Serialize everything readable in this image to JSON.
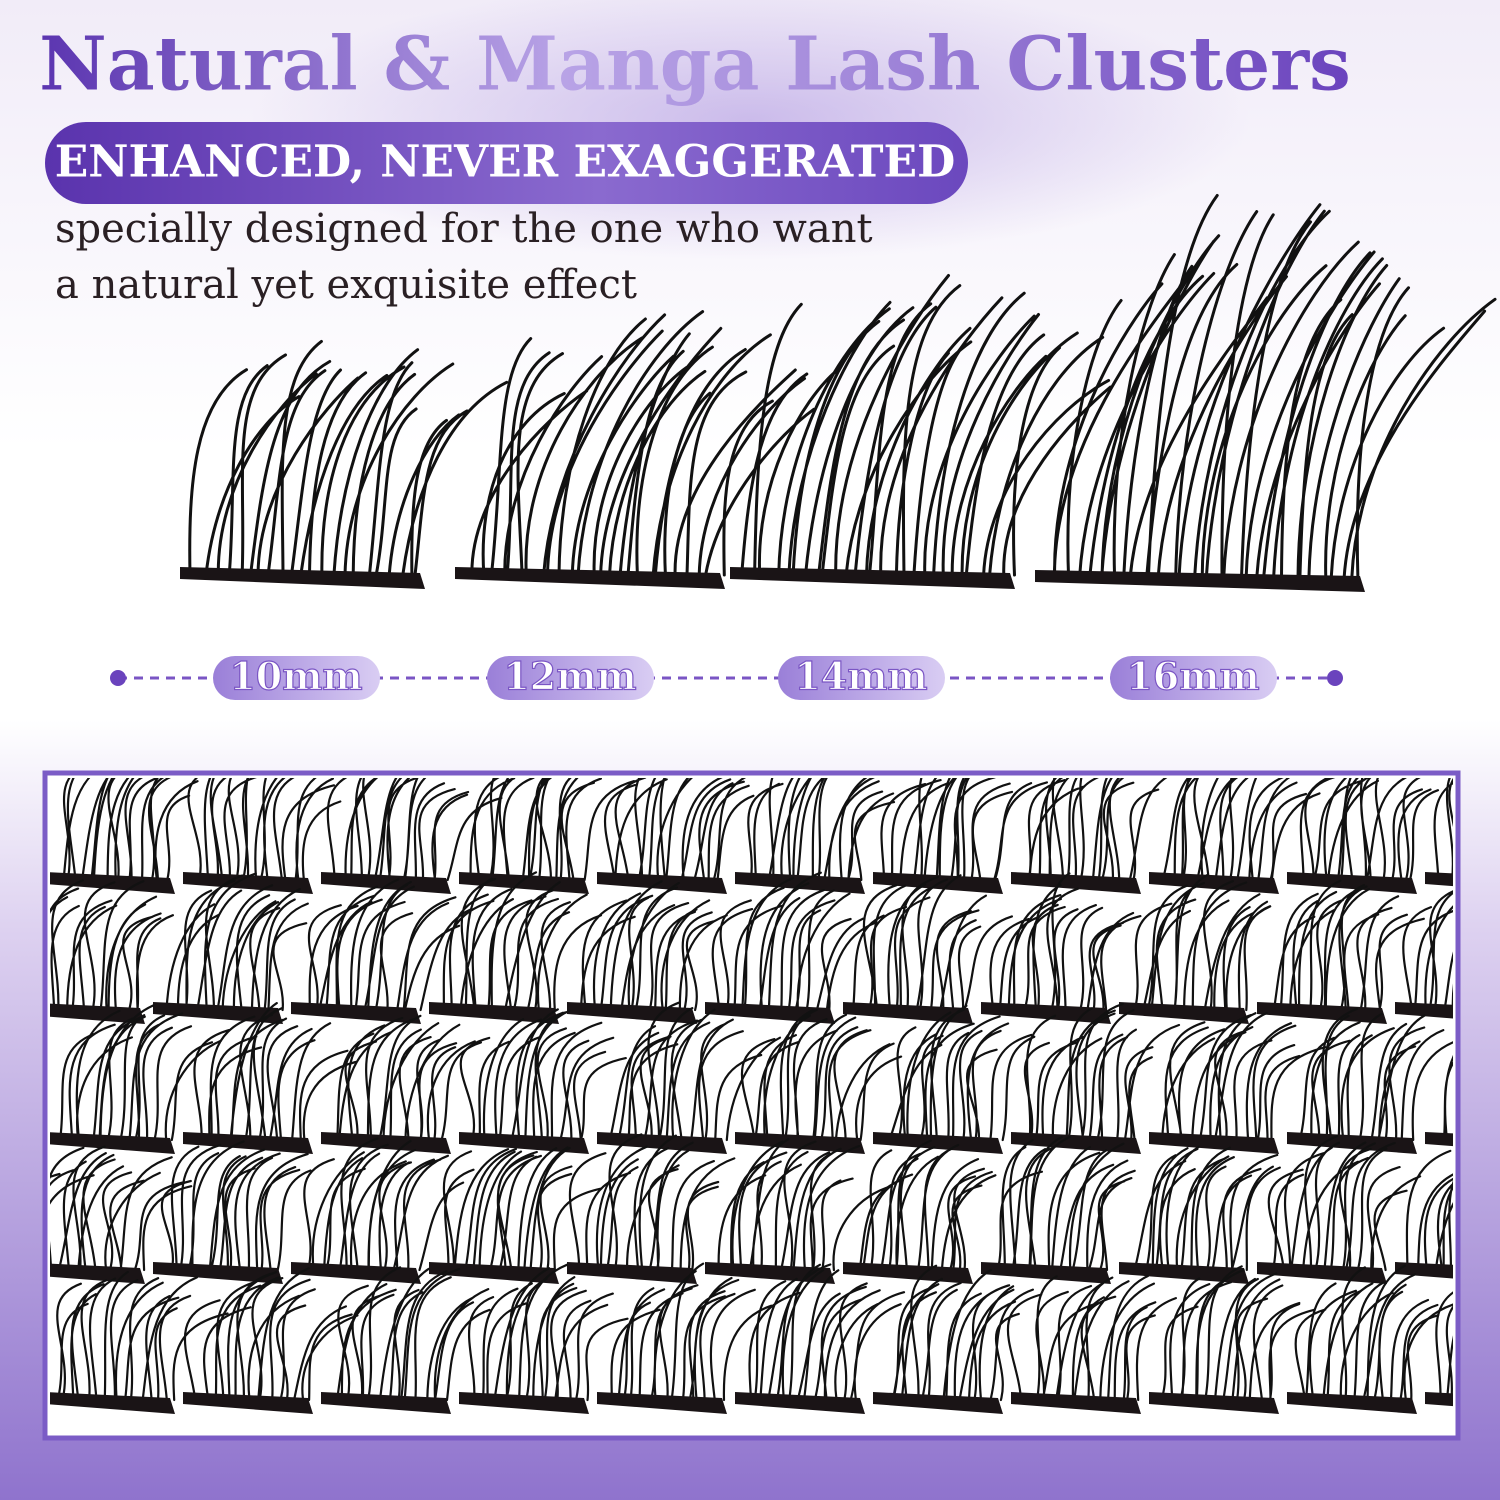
{
  "title": "Natural & Manga Lash Clusters",
  "badge": "ENHANCED, NEVER EXAGGERATED",
  "description": [
    "specially designed for the one who want",
    "a natural yet exquisite effect"
  ],
  "lengths": [
    "10mm",
    "12mm",
    "14mm",
    "16mm"
  ]
}
